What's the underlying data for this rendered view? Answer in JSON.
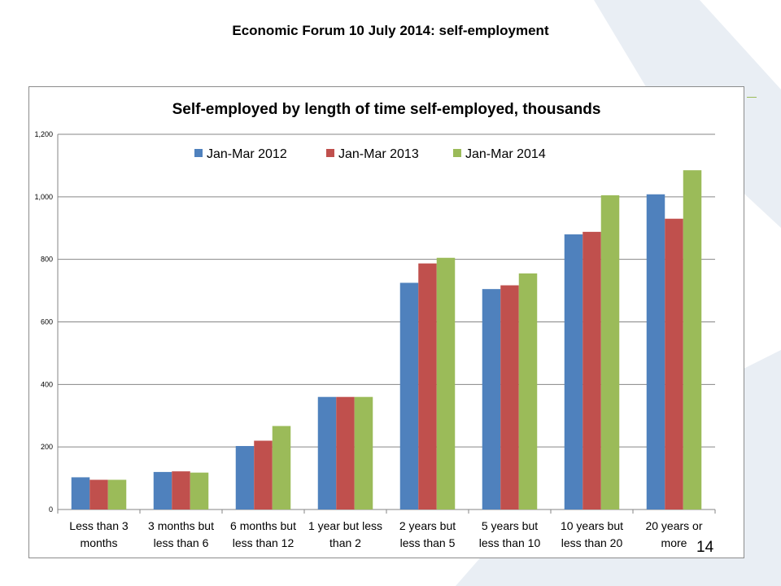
{
  "slide": {
    "title": "Economic Forum 10 July 2014: self-employment",
    "page_number": "14"
  },
  "colors": {
    "series": [
      "#4f81bd",
      "#c0504d",
      "#9bbb59"
    ],
    "background_shape": "#e9eef4"
  },
  "chart_data": {
    "type": "bar",
    "title": "Self-employed by length of time self-employed, thousands",
    "xlabel": "",
    "ylabel": "",
    "ylim": [
      0,
      1200
    ],
    "yticks": [
      "0",
      "200",
      "400",
      "600",
      "800",
      "1,000",
      "1,200"
    ],
    "grid": true,
    "legend_position": "top",
    "categories": [
      [
        "Less than 3",
        "months"
      ],
      [
        "3 months but",
        "less than 6"
      ],
      [
        "6 months but",
        "less than 12"
      ],
      [
        "1 year but less",
        "than 2"
      ],
      [
        "2 years but",
        "less than 5"
      ],
      [
        "5 years but",
        "less than 10"
      ],
      [
        "10 years but",
        "less than 20"
      ],
      [
        "20 years or",
        "more"
      ]
    ],
    "series": [
      {
        "name": "Jan-Mar 2012",
        "values": [
          103,
          120,
          203,
          360,
          725,
          705,
          880,
          1008
        ]
      },
      {
        "name": "Jan-Mar 2013",
        "values": [
          95,
          122,
          220,
          360,
          787,
          717,
          888,
          930
        ]
      },
      {
        "name": "Jan-Mar 2014",
        "values": [
          95,
          118,
          267,
          360,
          805,
          755,
          1005,
          1085
        ]
      }
    ]
  }
}
